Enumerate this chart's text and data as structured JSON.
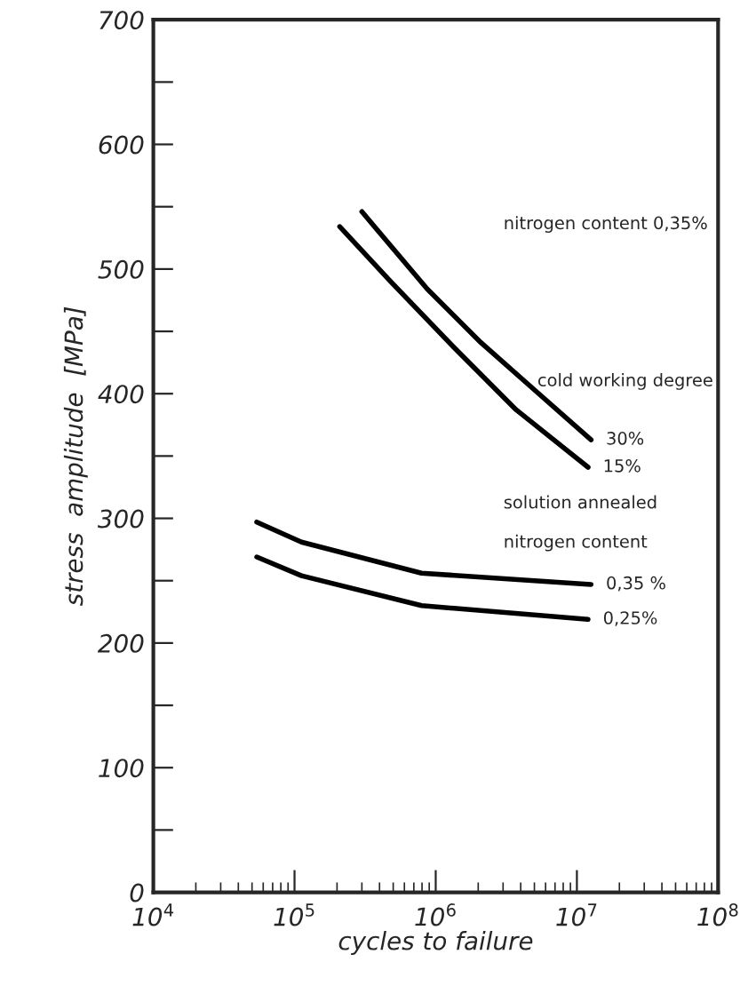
{
  "chart_data": {
    "type": "line",
    "xlabel": "cycles to failure",
    "ylabel": "stress  amplitude  [MPa]",
    "log": "x",
    "xlim": [
      10000,
      100000000
    ],
    "xticks": [
      {
        "value": 10000,
        "label": "10$^{4}$"
      },
      {
        "value": 100000,
        "label": "10$^{5}$"
      },
      {
        "value": 1000000,
        "label": "10$^{6}$"
      },
      {
        "value": 10000000,
        "label": "10$^{7}$"
      },
      {
        "value": 100000000,
        "label": "10$^{8}$"
      }
    ],
    "ylim": [
      0,
      700
    ],
    "yticks": [
      0,
      {
        "value": 50,
        "label": null
      },
      100,
      {
        "value": 150,
        "label": null
      },
      200,
      {
        "value": 250,
        "label": null
      },
      300,
      {
        "value": 350,
        "label": null
      },
      400,
      {
        "value": 450,
        "label": null
      },
      500,
      {
        "value": 550,
        "label": null
      },
      600,
      {
        "value": 650,
        "label": null
      },
      700
    ],
    "grid": false,
    "legend": false,
    "marker": "none",
    "line_style": "solid",
    "series": [
      {
        "name": "30%",
        "color": "#000000",
        "x": [
          300000,
          870000,
          2090000,
          5010000,
          12600000
        ],
        "values": [
          546,
          484,
          441,
          403,
          363
        ]
      },
      {
        "name": "15%",
        "color": "#000000",
        "x": [
          209000,
          479000,
          1350000,
          3720000,
          12000000
        ],
        "values": [
          534,
          490,
          437,
          387,
          341
        ]
      },
      {
        "name": "0,35 %",
        "color": "#000000",
        "x": [
          54000,
          112000,
          794000,
          12600000
        ],
        "values": [
          297,
          281,
          256,
          247
        ]
      },
      {
        "name": "0,25%",
        "color": "#000000",
        "x": [
          54000,
          112000,
          794000,
          12000000
        ],
        "values": [
          269,
          254,
          230,
          219
        ]
      }
    ],
    "annotations": [
      "nitrogen content 0,35%",
      "cold working degree",
      "solution annealed",
      "nitrogen content"
    ]
  }
}
